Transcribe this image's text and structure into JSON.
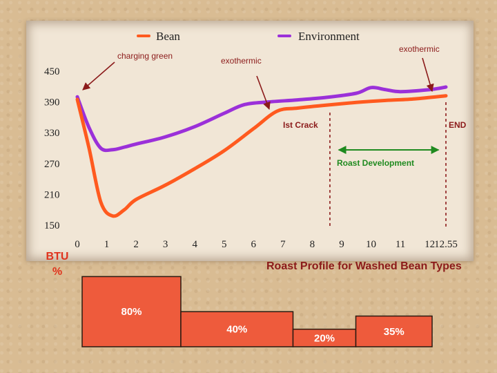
{
  "chart_data": {
    "type": "line",
    "title": "Roast Profile for Washed Bean Types",
    "x_ticks": [
      "0",
      "1",
      "2",
      "3",
      "4",
      "5",
      "6",
      "7",
      "8",
      "9",
      "10",
      "11",
      "12",
      "12.55"
    ],
    "y_ticks": [
      "450",
      "390",
      "330",
      "270",
      "210",
      "150"
    ],
    "xlim": [
      0,
      12.55
    ],
    "ylim": [
      150,
      450
    ],
    "grid": false,
    "legend": "top-center",
    "series": [
      {
        "name": "Bean",
        "color": "#ff5a1f",
        "points": [
          [
            0,
            395
          ],
          [
            0.4,
            300
          ],
          [
            0.8,
            195
          ],
          [
            1.2,
            168
          ],
          [
            1.6,
            180
          ],
          [
            2,
            200
          ],
          [
            3,
            228
          ],
          [
            4,
            260
          ],
          [
            5,
            295
          ],
          [
            6,
            338
          ],
          [
            6.8,
            372
          ],
          [
            7.5,
            378
          ],
          [
            8.5,
            384
          ],
          [
            9.5,
            389
          ],
          [
            10.5,
            393
          ],
          [
            11.5,
            396
          ],
          [
            12.55,
            402
          ]
        ]
      },
      {
        "name": "Environment",
        "color": "#9b30d9",
        "points": [
          [
            0,
            400
          ],
          [
            0.4,
            340
          ],
          [
            0.8,
            300
          ],
          [
            1.2,
            297
          ],
          [
            1.6,
            302
          ],
          [
            2,
            308
          ],
          [
            3,
            322
          ],
          [
            4,
            342
          ],
          [
            5,
            368
          ],
          [
            5.7,
            385
          ],
          [
            6.5,
            390
          ],
          [
            7.5,
            394
          ],
          [
            8.5,
            399
          ],
          [
            9.5,
            407
          ],
          [
            10,
            418
          ],
          [
            10.5,
            414
          ],
          [
            11,
            410
          ],
          [
            12,
            414
          ],
          [
            12.55,
            419
          ]
        ]
      }
    ],
    "annotations": {
      "charging": "charging green",
      "exothermic_1": "exothermic",
      "exothermic_2": "exothermic",
      "first_crack": "Ist Crack",
      "end": "END",
      "roast_dev": "Roast Development"
    },
    "markers": {
      "first_crack_x": 8.6,
      "end_x": 12.55,
      "dev_start_x": 8.9,
      "dev_end_x": 12.3
    },
    "btu": {
      "label_line1": "BTU",
      "label_line2": "%",
      "color": "#ee5b3c",
      "bars": [
        {
          "label": "80%",
          "value": 80,
          "x_start": 0.3,
          "x_end": 4.7
        },
        {
          "label": "40%",
          "value": 40,
          "x_start": 4.7,
          "x_end": 9.7
        },
        {
          "label": "20%",
          "value": 20,
          "x_start": 9.7,
          "x_end": 12.5
        },
        {
          "label": "35%",
          "value": 35,
          "x_start": 12.5,
          "x_end": 15.9
        }
      ]
    }
  }
}
